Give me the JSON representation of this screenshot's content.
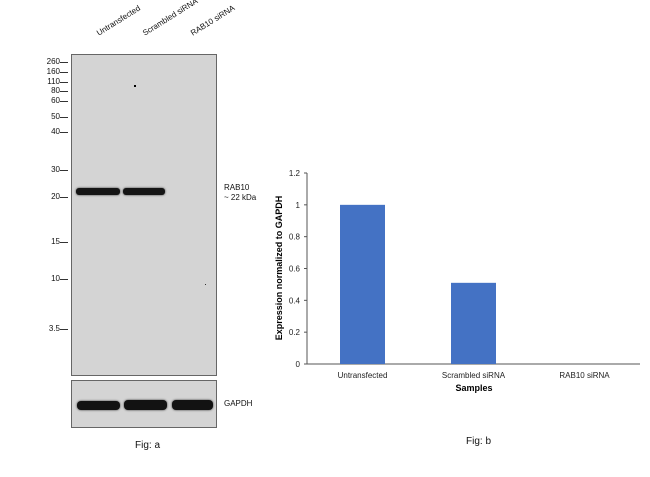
{
  "western_blot": {
    "lanes": [
      "Untransfected",
      "Scrambled siRNA",
      "RAB10 siRNA"
    ],
    "markers": [
      "260",
      "160",
      "110",
      "80",
      "60",
      "50",
      "40",
      "30",
      "20",
      "15",
      "10",
      "3.5"
    ],
    "target_label_line1": "RAB10",
    "target_label_line2": "~ 22 kDa",
    "control_label": "GAPDH",
    "caption": "Fig: a"
  },
  "chart_data": {
    "type": "bar",
    "categories": [
      "Untransfected",
      "Scrambled siRNA",
      "RAB10 siRNA"
    ],
    "values": [
      1.0,
      0.51,
      0.0
    ],
    "xlabel": "Samples",
    "ylabel": "Expression normalized to GAPDH",
    "ylim": [
      0,
      1.2
    ],
    "yticks": [
      "0",
      "0.2",
      "0.4",
      "0.6",
      "0.8",
      "1",
      "1.2"
    ],
    "bar_color": "#4472c4",
    "grid": false,
    "caption": "Fig: b"
  }
}
